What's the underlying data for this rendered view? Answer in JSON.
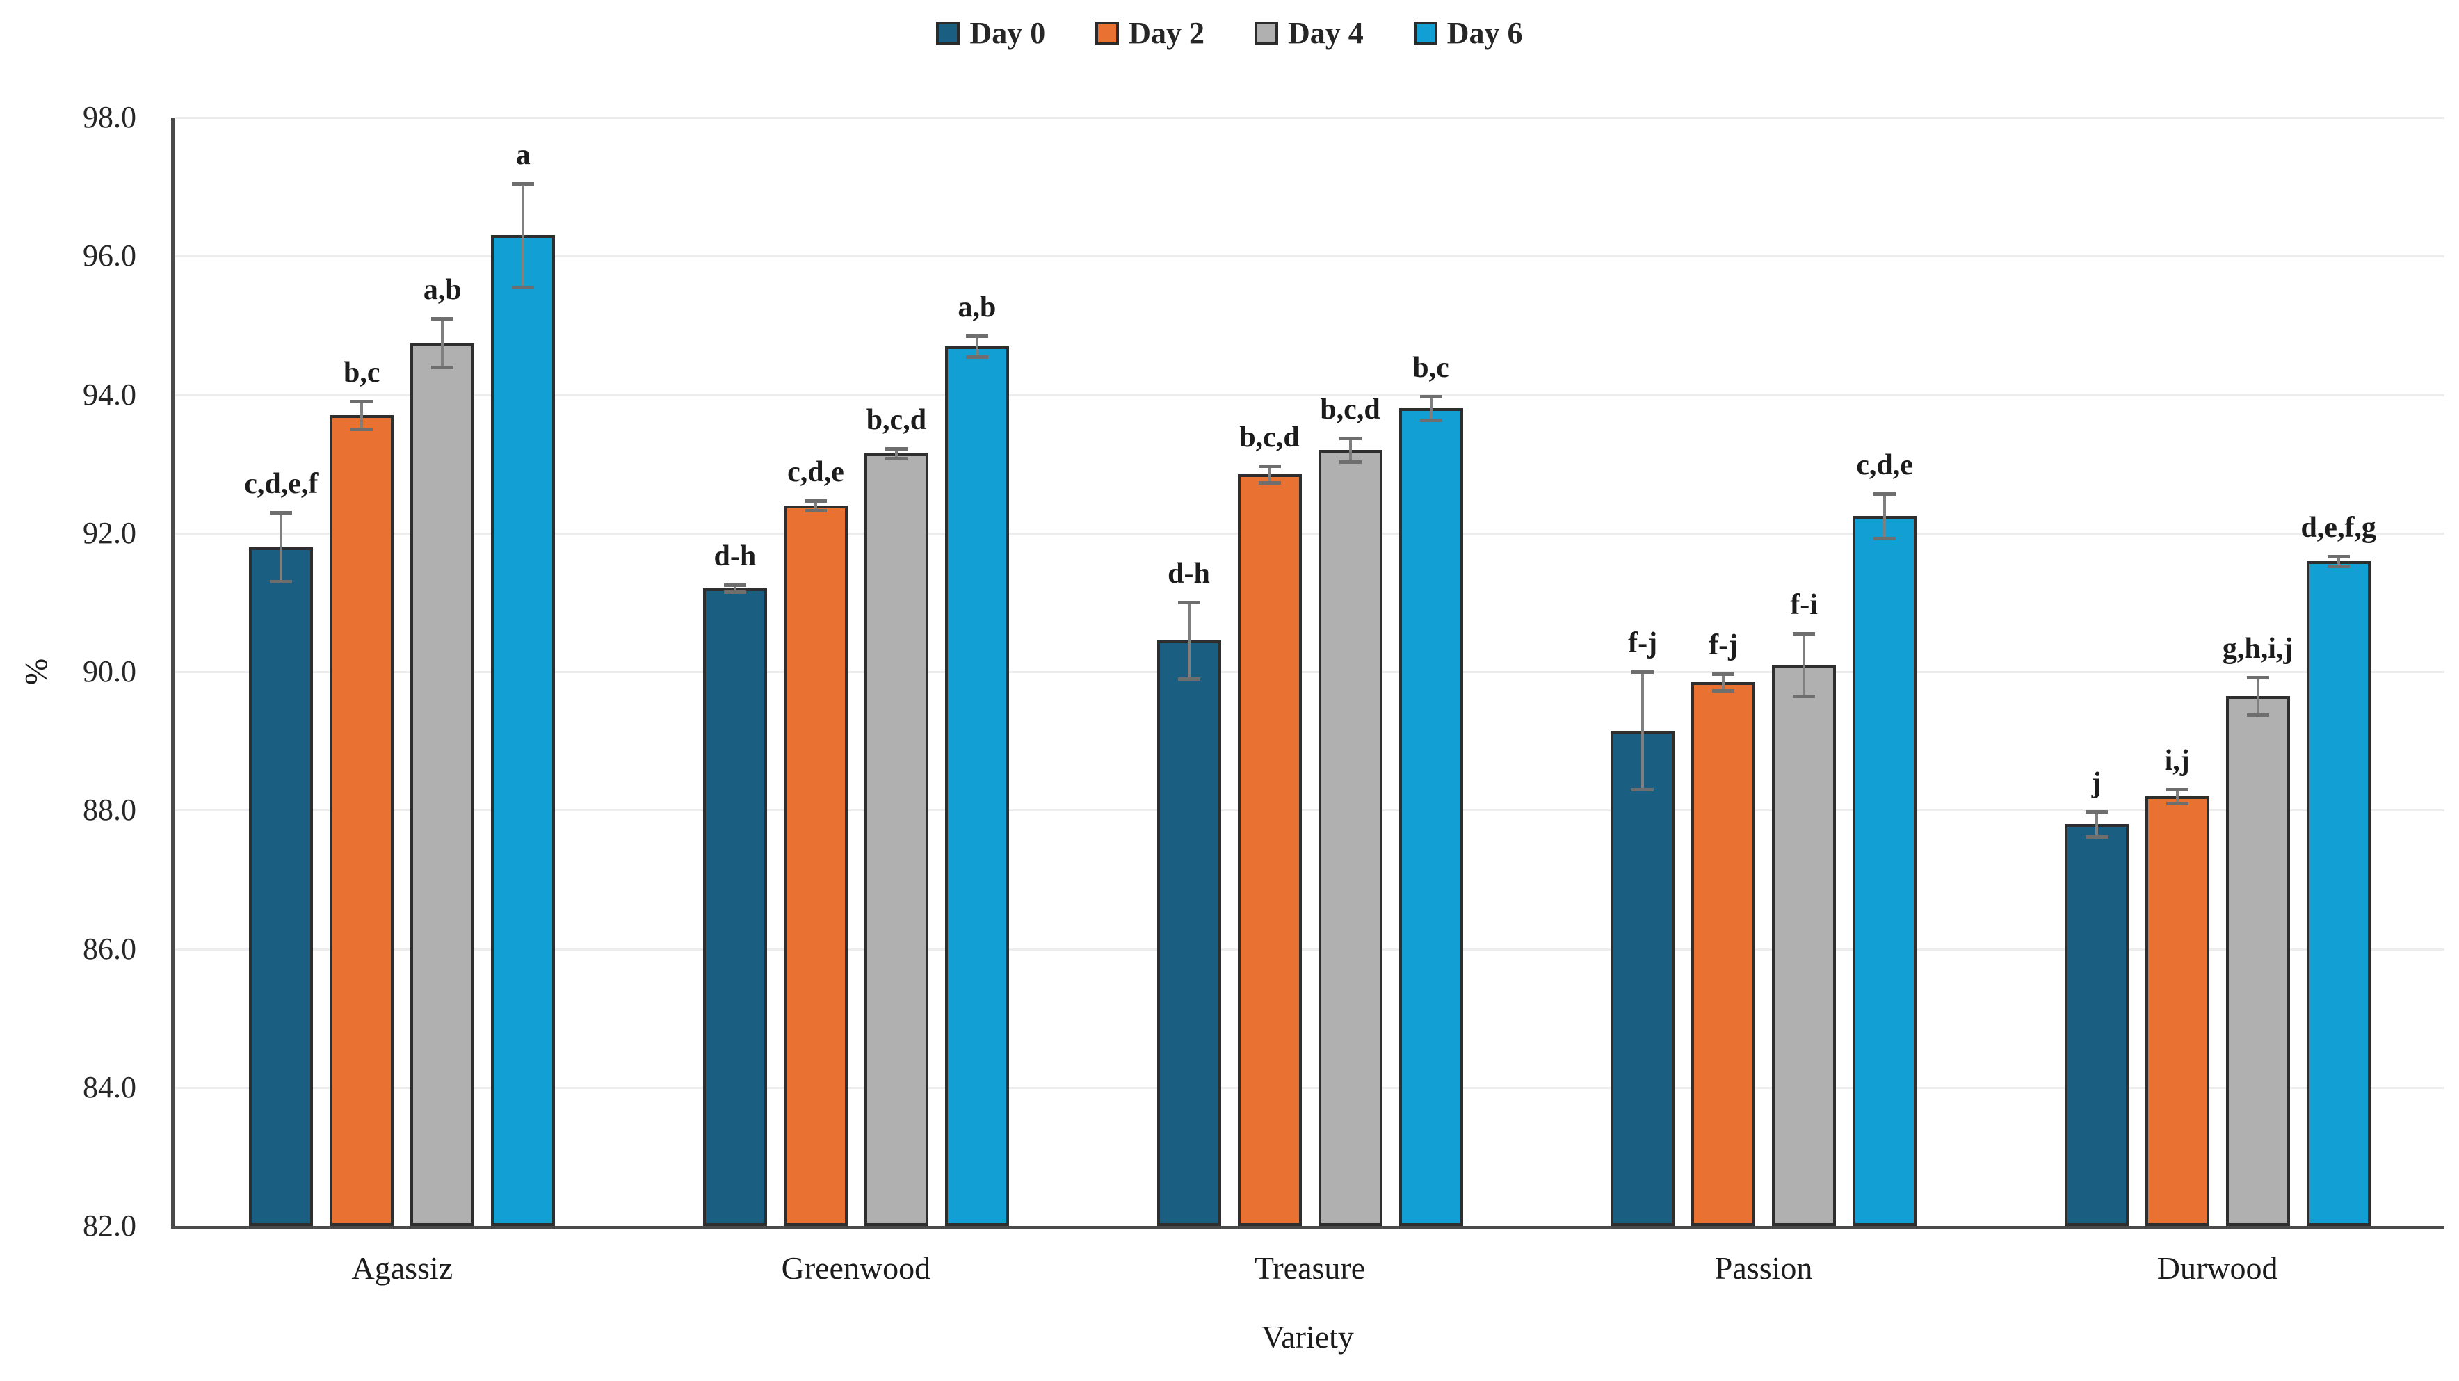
{
  "figure": {
    "background": "#ffffff"
  },
  "legend": {
    "position": "top",
    "items": [
      {
        "label": "Day 0",
        "color": "#1a5f82"
      },
      {
        "label": "Day 2",
        "color": "#e97132"
      },
      {
        "label": "Day 4",
        "color": "#b0b0b0"
      },
      {
        "label": "Day 6",
        "color": "#129fd4"
      }
    ]
  },
  "chart_data": {
    "type": "bar",
    "title": "",
    "xlabel": "Variety",
    "ylabel": "%",
    "ylim": [
      82.0,
      98.0
    ],
    "ytick_step": 2.0,
    "ytick_labels": [
      "82.0",
      "84.0",
      "86.0",
      "88.0",
      "90.0",
      "92.0",
      "94.0",
      "96.0",
      "98.0"
    ],
    "grid": true,
    "legend_position": "top",
    "error_bars": true,
    "categories": [
      "Agassiz",
      "Greenwood",
      "Treasure",
      "Passion",
      "Durwood"
    ],
    "series": [
      {
        "name": "Day 0",
        "color": "#1a5f82",
        "values": [
          91.8,
          91.2,
          90.45,
          89.15,
          87.8
        ],
        "errors": [
          0.5,
          0.05,
          0.55,
          0.85,
          0.18
        ],
        "sig_labels": [
          "c,d,e,f",
          "d-h",
          "d-h",
          "f-j",
          "j"
        ]
      },
      {
        "name": "Day 2",
        "color": "#e97132",
        "values": [
          93.7,
          92.4,
          92.85,
          89.85,
          88.2
        ],
        "errors": [
          0.2,
          0.07,
          0.12,
          0.12,
          0.1
        ],
        "sig_labels": [
          "b,c",
          "c,d,e",
          "b,c,d",
          "f-j",
          "i,j"
        ]
      },
      {
        "name": "Day 4",
        "color": "#b0b0b0",
        "values": [
          94.75,
          93.15,
          93.2,
          90.1,
          89.65
        ],
        "errors": [
          0.35,
          0.07,
          0.17,
          0.45,
          0.27
        ],
        "sig_labels": [
          "a,b",
          "b,c,d",
          "b,c,d",
          "f-i",
          "g,h,i,j"
        ]
      },
      {
        "name": "Day 6",
        "color": "#129fd4",
        "values": [
          96.3,
          94.7,
          93.8,
          92.25,
          91.6
        ],
        "errors": [
          0.75,
          0.15,
          0.17,
          0.32,
          0.07
        ],
        "sig_labels": [
          "a",
          "a,b",
          "b,c",
          "c,d,e",
          "d,e,f,g"
        ]
      }
    ]
  }
}
